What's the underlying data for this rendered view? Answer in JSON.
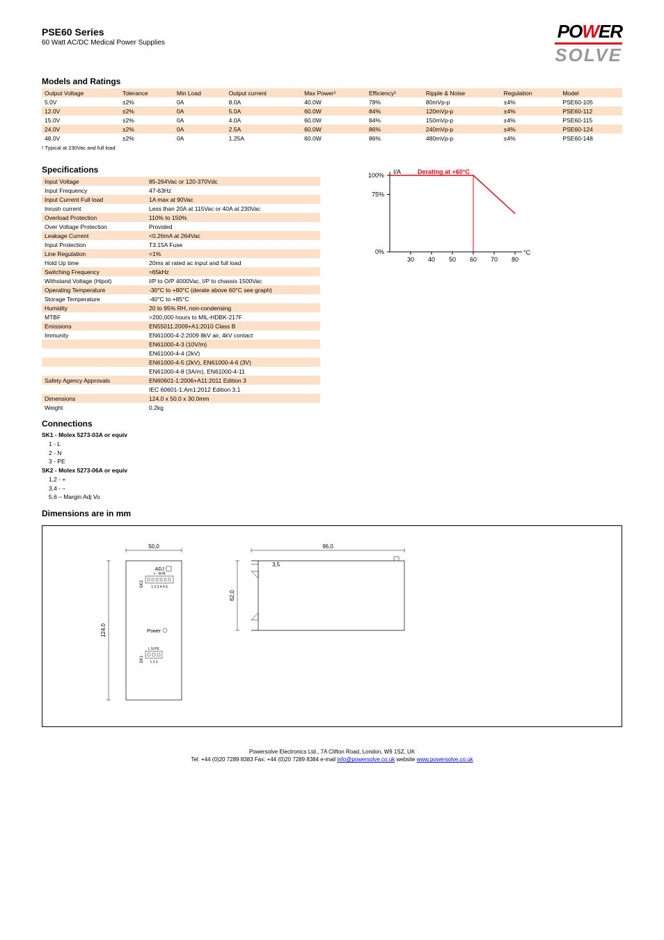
{
  "header": {
    "title": "PSE60 Series",
    "subtitle": "60 Watt AC/DC Medical Power Supplies",
    "logo_top_left": "PO",
    "logo_top_right": "ER",
    "logo_bottom": "SOLVE"
  },
  "models": {
    "section_title": "Models and Ratings",
    "headers": [
      "Output Voltage",
      "Tolerance",
      "Min Load",
      "Output current",
      "Max Power¹",
      "Efficiency¹",
      "Ripple & Noise",
      "Regulation",
      "Model"
    ],
    "rows": [
      [
        "5.0V",
        "±2%",
        "0A",
        "8.0A",
        "40.0W",
        "78%",
        "80mVp-p",
        "±4%",
        "PSE60-105"
      ],
      [
        "12.0V",
        "±2%",
        "0A",
        "5.0A",
        "60.0W",
        "84%",
        "120mVp-p",
        "±4%",
        "PSE60-112"
      ],
      [
        "15.0V",
        "±2%",
        "0A",
        "4.0A",
        "60.0W",
        "84%",
        "150mVp-p",
        "±4%",
        "PSE60-115"
      ],
      [
        "24.0V",
        "±2%",
        "0A",
        "2.5A",
        "60.0W",
        "86%",
        "240mVp-p",
        "±4%",
        "PSE60-124"
      ],
      [
        "48.0V",
        "±2%",
        "0A",
        "1.25A",
        "60.0W",
        "86%",
        "480mVp-p",
        "±4%",
        "PSE60-148"
      ]
    ],
    "footnote": "¹ Typical at 230Vac and full load"
  },
  "specs": {
    "section_title": "Specifications",
    "rows": [
      [
        "Input Voltage",
        "85-264Vac or 120-370Vdc"
      ],
      [
        "Input Frequency",
        "47-63Hz"
      ],
      [
        "Input Current Full load",
        "1A max at 90Vac"
      ],
      [
        "Inrush current",
        "Less than 20A at 115Vac or 40A at 230Vac"
      ],
      [
        "Overload Protection",
        "110% to 150%"
      ],
      [
        "Over Voltage Protection",
        "Provided"
      ],
      [
        "Leakage Current",
        "<0.26mA at 264Vac"
      ],
      [
        "Input Protection",
        "T3.15A Fuse"
      ],
      [
        "Line Regulation",
        "<1%"
      ],
      [
        "Hold Up time",
        "20ms at rated ac input and full load"
      ],
      [
        "Switching Frequency",
        "≈65kHz"
      ],
      [
        "Withstand Voltage (Hipot)",
        "I/P to O/P 4000Vac, I/P to chassis 1500Vac"
      ],
      [
        "Operating Temperature",
        "-30°C to +80°C (derate above 60°C see graph)"
      ],
      [
        "Storage Temperature",
        "-40°C to +85°C"
      ],
      [
        "Humidity",
        "20 to 95% RH, non-condensing"
      ],
      [
        "MTBF",
        ">200,000 hours to MIL-HDBK-217F"
      ],
      [
        "Emissions",
        "EN55011:2009+A1:2010 Class B"
      ],
      [
        "Immunity",
        "EN61000-4-2:2009 8kV air, 4kV contact"
      ],
      [
        "",
        "EN61000-4-3 (10V/m)"
      ],
      [
        "",
        "EN61000-4-4 (2kV)"
      ],
      [
        "",
        "EN61000-4-5 (2kV), EN61000-4-6 (3V)"
      ],
      [
        "",
        "EN61000-4-8 (3A/m), EN61000-4-11"
      ],
      [
        "Safety Agency Approvals",
        "EN60601-1:2006+A11:2011 Edition 3"
      ],
      [
        "",
        "IEC 60601-1:Am1:2012 Edition 3.1"
      ],
      [
        "Dimensions",
        "124.0 x 50.0 x 30.0mm"
      ],
      [
        "Weight",
        "0.2kg"
      ]
    ]
  },
  "chart": {
    "title": "Derating at +60°C",
    "title_color": "#e30613",
    "ylabel": "I/A",
    "xlabel": "°C",
    "y_ticks": [
      "100%",
      "75%",
      "0%"
    ],
    "y_tick_positions": [
      100,
      75,
      0
    ],
    "x_ticks": [
      "30",
      "40",
      "50",
      "60",
      "70",
      "80"
    ],
    "x_tick_positions": [
      30,
      40,
      50,
      60,
      70,
      80
    ],
    "line_points_x": [
      20,
      60,
      80
    ],
    "line_points_y": [
      100,
      100,
      50
    ],
    "line_color": "#e30613",
    "axis_color": "#000000",
    "drop_line_x": 60,
    "font_size": 9
  },
  "connections": {
    "section_title": "Connections",
    "groups": [
      {
        "name": "SK1 - Molex 5273-03A or equiv",
        "items": [
          "1 - L",
          "2 - N",
          "3 - PE"
        ]
      },
      {
        "name": "SK2 - Molex 5273-06A or equiv",
        "items": [
          "1,2 - +",
          "3,4 - –",
          "5,6 – Margin Adj Vo"
        ]
      }
    ]
  },
  "dimensions": {
    "section_title": "Dimensions are in mm",
    "values": {
      "width_top": "50,0",
      "height_left": "124,0",
      "depth_side": "96,0",
      "side_height": "62,0",
      "offset": "3,5",
      "adj_label": "ADJ",
      "power_label": "Power",
      "sk1_label": "SK1",
      "sk2_label": "SK2",
      "sk1_pins": "L N PE",
      "sk1_nums": "1 2 3",
      "sk2_pins": "+ - M M",
      "sk2_nums": "1 2 3 4 5 6"
    }
  },
  "footer": {
    "company": "Powersolve Electronics Ltd.",
    "address": "7A Clifton Road, London, W9 1SZ, UK",
    "phone": "Tel: +44 (0)20 7289 8383",
    "fax": "Fax: +44 (0)20 7289 8384",
    "email_label": "e-mail ",
    "email": "info@powersolve.co.uk",
    "website_label": " website ",
    "website": "www.powersolve.co.uk"
  }
}
